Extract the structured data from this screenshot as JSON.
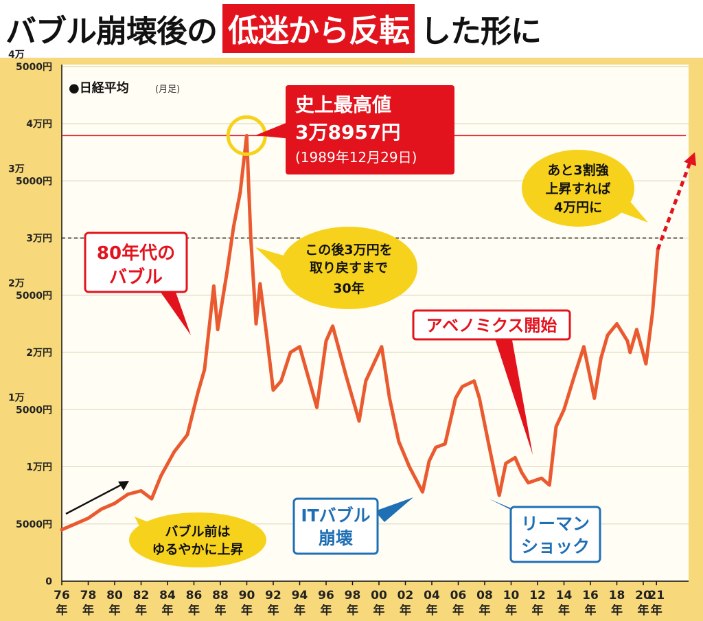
{
  "title": {
    "part1": "バブル崩壊後の",
    "highlight": "低迷から反転",
    "part2": "した形に"
  },
  "colors": {
    "frame": "#f7d87a",
    "plot_bg": "#fffdf4",
    "line": "#ea5a30",
    "accent_red": "#e3131e",
    "bubble_yellow": "#f7d21c",
    "callout_blue": "#1f6fb5"
  },
  "chart_data": {
    "type": "line",
    "title": "●日経平均",
    "title_note": "(月足)",
    "ylim": [
      0,
      45000
    ],
    "y_ticks": [
      {
        "value": 0,
        "lines": [
          "0"
        ]
      },
      {
        "value": 5000,
        "lines": [
          "5000円"
        ]
      },
      {
        "value": 10000,
        "lines": [
          "1万円"
        ]
      },
      {
        "value": 15000,
        "lines": [
          "1万",
          "5000円"
        ]
      },
      {
        "value": 20000,
        "lines": [
          "2万円"
        ]
      },
      {
        "value": 25000,
        "lines": [
          "2万",
          "5000円"
        ]
      },
      {
        "value": 30000,
        "lines": [
          "3万円"
        ]
      },
      {
        "value": 35000,
        "lines": [
          "3万",
          "5000円"
        ]
      },
      {
        "value": 40000,
        "lines": [
          "4万円"
        ]
      },
      {
        "value": 45000,
        "lines": [
          "4万",
          "5000円"
        ]
      }
    ],
    "x_ticks": [
      {
        "year": 1976,
        "label": "76"
      },
      {
        "year": 1978,
        "label": "78"
      },
      {
        "year": 1980,
        "label": "80"
      },
      {
        "year": 1982,
        "label": "82"
      },
      {
        "year": 1984,
        "label": "84"
      },
      {
        "year": 1986,
        "label": "86"
      },
      {
        "year": 1988,
        "label": "88"
      },
      {
        "year": 1990,
        "label": "90"
      },
      {
        "year": 1992,
        "label": "92"
      },
      {
        "year": 1994,
        "label": "94"
      },
      {
        "year": 1996,
        "label": "96"
      },
      {
        "year": 1998,
        "label": "98"
      },
      {
        "year": 2000,
        "label": "00"
      },
      {
        "year": 2002,
        "label": "02"
      },
      {
        "year": 2004,
        "label": "04"
      },
      {
        "year": 2006,
        "label": "06"
      },
      {
        "year": 2008,
        "label": "08"
      },
      {
        "year": 2010,
        "label": "10"
      },
      {
        "year": 2012,
        "label": "12"
      },
      {
        "year": 2014,
        "label": "14"
      },
      {
        "year": 2016,
        "label": "16"
      },
      {
        "year": 2018,
        "label": "18"
      },
      {
        "year": 2020,
        "label": "20"
      },
      {
        "year": 2021,
        "label": "21"
      }
    ],
    "year_suffix": "年",
    "series": [
      {
        "x": [
          1976,
          1977,
          1978,
          1979,
          1980,
          1981,
          1982,
          1982.8,
          1983.5,
          1984.5,
          1985.5,
          1986.3,
          1986.8,
          1987.5,
          1987.8,
          1988.5,
          1989,
          1989.5,
          1989.99,
          1990.3,
          1990.7,
          1991,
          1991.5,
          1992,
          1992.6,
          1993.3,
          1994,
          1995.3,
          1996,
          1996.5,
          1997.5,
          1998.5,
          1999,
          2000.2,
          2000.8,
          2001.5,
          2002.3,
          2003.3,
          2003.8,
          2004.3,
          2005,
          2005.8,
          2006.3,
          2007.2,
          2007.6,
          2008.3,
          2009.1,
          2009.6,
          2010.3,
          2010.8,
          2011.3,
          2012.3,
          2012.9,
          2013.4,
          2014,
          2014.8,
          2015.5,
          2016.3,
          2016.8,
          2017.3,
          2018,
          2018.8,
          2019,
          2019.5,
          2020.2,
          2020.7,
          2021.1
        ],
        "y": [
          4500,
          5000,
          5500,
          6300,
          6800,
          7600,
          7900,
          7200,
          9200,
          11300,
          12800,
          16500,
          18500,
          25800,
          22000,
          27000,
          31000,
          34000,
          38957,
          30000,
          22500,
          26000,
          21500,
          16700,
          17500,
          20000,
          20500,
          15200,
          21000,
          22300,
          18000,
          14000,
          17500,
          20500,
          16000,
          12200,
          10000,
          7800,
          10500,
          11700,
          12000,
          16000,
          17000,
          17500,
          16000,
          12000,
          7500,
          10300,
          10800,
          9500,
          8600,
          9000,
          8400,
          13500,
          15000,
          18000,
          20500,
          16000,
          19500,
          21500,
          22500,
          21000,
          20000,
          22000,
          19000,
          23500,
          29000
        ]
      }
    ],
    "peak_label": {
      "title": "史上最高値",
      "value": "3万8957円",
      "date": "(1989年12月29日)"
    },
    "reference_lines": [
      {
        "value": 38957,
        "style": "solid"
      },
      {
        "value": 30000,
        "style": "dashed"
      }
    ],
    "projection_arrow": {
      "from": [
        2021.1,
        29000
      ],
      "to": [
        2023.9,
        37500
      ]
    },
    "annotations": {
      "bubble_80s": [
        "80年代の",
        "バブル"
      ],
      "abenomics": "アベノミクス開始",
      "it_bubble": [
        "ITバブル",
        "崩壊"
      ],
      "lehman": [
        "リーマン",
        "ショック"
      ],
      "after_30y": [
        "この後3万円を",
        "取り戻すまで",
        "30年"
      ],
      "gradual_rise": [
        "バブル前は",
        "ゆるやかに上昇"
      ],
      "target_4man": [
        "あと3割強",
        "上昇すれば",
        "4万円に"
      ]
    }
  }
}
